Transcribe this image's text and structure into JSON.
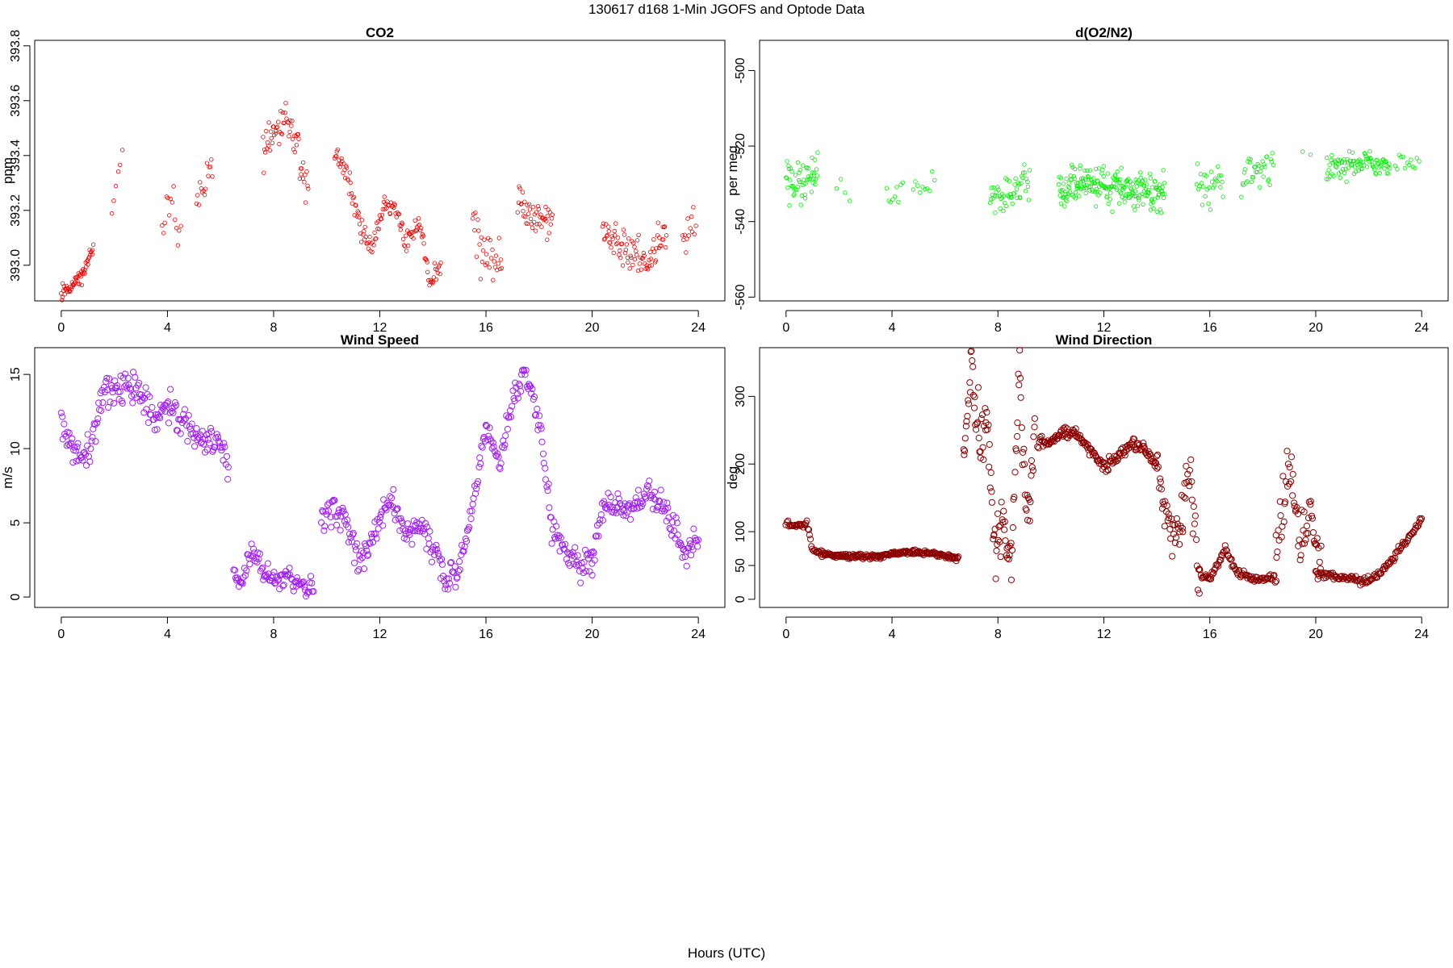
{
  "figure": {
    "title": "130617   d168   1-Min  JGOFS and Optode Data",
    "xlabel": "Hours (UTC)"
  },
  "chart_data": [
    {
      "id": "co2",
      "type": "scatter",
      "title": "CO2",
      "xlabel": "",
      "ylabel": "ppm",
      "xlim": [
        -1,
        25
      ],
      "ylim": [
        392.87,
        393.82
      ],
      "xticks": [
        0,
        4,
        8,
        12,
        16,
        20,
        24
      ],
      "yticks": [
        393.0,
        393.2,
        393.4,
        393.6,
        393.8
      ],
      "ytick_labels": [
        "393.0",
        "393.2",
        "393.4",
        "393.6",
        "393.8"
      ],
      "grid": false,
      "marker": "open-circle",
      "marker_color": "#ee0000",
      "segments": [
        {
          "x": [
            0.0,
            0.4,
            0.8,
            1.2
          ],
          "y": [
            392.9,
            392.93,
            392.96,
            393.07
          ],
          "spread": 0.025,
          "density": 48
        },
        {
          "x": [
            1.9,
            2.3
          ],
          "y": [
            393.17,
            393.42
          ],
          "spread": 0.07,
          "density": 15
        },
        {
          "x": [
            3.8,
            4.1,
            4.5
          ],
          "y": [
            393.13,
            393.28,
            393.12
          ],
          "spread": 0.08,
          "density": 20
        },
        {
          "x": [
            5.1,
            5.4,
            5.7
          ],
          "y": [
            393.22,
            393.3,
            393.38
          ],
          "spread": 0.06,
          "density": 25
        },
        {
          "x": [
            7.6,
            8.1,
            8.5,
            8.9,
            9.3
          ],
          "y": [
            393.42,
            393.5,
            393.55,
            393.45,
            393.26
          ],
          "spread": 0.07,
          "density": 35
        },
        {
          "x": [
            10.3,
            10.8,
            11.3,
            11.7,
            12.2,
            12.6,
            13.0,
            13.5,
            13.9,
            14.3
          ],
          "y": [
            393.42,
            393.32,
            393.12,
            393.07,
            393.22,
            393.2,
            393.08,
            393.15,
            392.94,
            393.0
          ],
          "spread": 0.04,
          "density": 35
        },
        {
          "x": [
            15.5,
            16.0,
            16.6
          ],
          "y": [
            393.15,
            393.02,
            393.0
          ],
          "spread": 0.08,
          "density": 28
        },
        {
          "x": [
            17.2,
            17.8,
            18.5
          ],
          "y": [
            393.23,
            393.18,
            393.14
          ],
          "spread": 0.06,
          "density": 35
        },
        {
          "x": [
            20.4,
            21.0,
            21.6,
            22.2,
            22.8
          ],
          "y": [
            393.12,
            393.06,
            393.04,
            393.02,
            393.12
          ],
          "spread": 0.06,
          "density": 35
        },
        {
          "x": [
            23.4,
            23.9
          ],
          "y": [
            393.08,
            393.15
          ],
          "spread": 0.06,
          "density": 25
        }
      ]
    },
    {
      "id": "o2n2",
      "type": "scatter",
      "title": "d(O2/N2)",
      "xlabel": "",
      "ylabel": "per meg",
      "xlim": [
        -1,
        25
      ],
      "ylim": [
        -561,
        -492
      ],
      "xticks": [
        0,
        4,
        8,
        12,
        16,
        20,
        24
      ],
      "yticks": [
        -560,
        -540,
        -520,
        -500
      ],
      "ytick_labels": [
        "-560",
        "-540",
        "-520",
        "-500"
      ],
      "grid": false,
      "marker": "open-circle",
      "marker_color": "#00ee00",
      "segments": [
        {
          "x": [
            0.0,
            0.5,
            1.2
          ],
          "y": [
            -529,
            -530,
            -528
          ],
          "spread": 5,
          "density": 45
        },
        {
          "x": [
            1.9,
            2.4
          ],
          "y": [
            -530,
            -532
          ],
          "spread": 4,
          "density": 8
        },
        {
          "x": [
            3.8,
            4.4
          ],
          "y": [
            -532,
            -532
          ],
          "spread": 4,
          "density": 15
        },
        {
          "x": [
            4.8,
            5.6
          ],
          "y": [
            -532,
            -530
          ],
          "spread": 4,
          "density": 12
        },
        {
          "x": [
            7.7,
            8.4,
            9.2
          ],
          "y": [
            -533,
            -532,
            -530
          ],
          "spread": 4,
          "density": 35
        },
        {
          "x": [
            10.3,
            11.2,
            12.2,
            13.2,
            14.3
          ],
          "y": [
            -532,
            -530,
            -531,
            -532,
            -533
          ],
          "spread": 4.5,
          "density": 55
        },
        {
          "x": [
            15.5,
            16.0,
            16.5
          ],
          "y": [
            -529,
            -531,
            -530
          ],
          "spread": 5,
          "density": 28
        },
        {
          "x": [
            17.2,
            17.8,
            18.4
          ],
          "y": [
            -528,
            -527,
            -526
          ],
          "spread": 5,
          "density": 30
        },
        {
          "x": [
            19.5,
            19.8
          ],
          "y": [
            -522,
            -522
          ],
          "spread": 2,
          "density": 5
        },
        {
          "x": [
            20.4,
            21.2,
            22.0,
            22.8
          ],
          "y": [
            -526,
            -525,
            -524,
            -526
          ],
          "spread": 3,
          "density": 40
        },
        {
          "x": [
            23.0,
            23.9
          ],
          "y": [
            -524,
            -523
          ],
          "spread": 3,
          "density": 15
        }
      ]
    },
    {
      "id": "windspeed",
      "type": "scatter",
      "title": "Wind Speed",
      "xlabel": "",
      "ylabel": "m/s",
      "xlim": [
        -1,
        25
      ],
      "ylim": [
        -0.7,
        16.8
      ],
      "xticks": [
        0,
        4,
        8,
        12,
        16,
        20,
        24
      ],
      "yticks": [
        0,
        5,
        10,
        15
      ],
      "ytick_labels": [
        "0",
        "5",
        "10",
        "15"
      ],
      "grid": false,
      "marker": "open-circle",
      "marker_color": "#a020f0",
      "segments": [
        {
          "x": [
            0.0,
            0.4,
            0.8,
            1.2,
            1.6,
            2.0,
            2.5,
            3.0,
            3.5,
            4.0,
            4.5,
            5.0,
            5.5,
            6.0,
            6.3
          ],
          "y": [
            11.5,
            10.0,
            9.3,
            11.0,
            14.0,
            13.5,
            14.2,
            14.0,
            12.0,
            12.8,
            11.8,
            11.0,
            10.6,
            10.5,
            8.5
          ],
          "spread": 1.0,
          "density": 30
        },
        {
          "x": [
            6.5,
            6.8,
            7.2,
            7.6,
            8.0,
            8.5,
            9.0,
            9.5
          ],
          "y": [
            2.0,
            1.0,
            3.0,
            2.0,
            1.0,
            1.3,
            0.8,
            0.6
          ],
          "spread": 0.7,
          "density": 30
        },
        {
          "x": [
            9.8,
            10.3,
            10.8,
            11.2,
            11.6,
            12.0,
            12.5,
            13.0,
            13.5,
            14.0,
            14.5,
            15.0,
            15.5,
            16.0
          ],
          "y": [
            5.0,
            6.0,
            5.0,
            2.0,
            3.5,
            5.5,
            6.5,
            4.0,
            5.0,
            3.5,
            1.0,
            2.0,
            6.0,
            11.5
          ],
          "spread": 0.9,
          "density": 30
        },
        {
          "x": [
            16.0,
            16.5,
            17.0,
            17.5,
            18.0,
            18.5,
            19.0,
            19.5,
            20.0
          ],
          "y": [
            11.5,
            9.0,
            13.0,
            15.0,
            12.0,
            4.5,
            3.0,
            2.0,
            2.5
          ],
          "spread": 1.0,
          "density": 30
        },
        {
          "x": [
            20.0,
            20.5,
            21.0,
            21.5,
            22.0,
            22.5,
            23.0,
            23.5,
            24.0
          ],
          "y": [
            2.5,
            6.5,
            6.0,
            6.0,
            7.0,
            6.5,
            5.0,
            3.0,
            4.0
          ],
          "spread": 0.9,
          "density": 30
        }
      ]
    },
    {
      "id": "winddir",
      "type": "scatter",
      "title": "Wind Direction",
      "xlabel": "",
      "ylabel": "deg",
      "xlim": [
        -1,
        25
      ],
      "ylim": [
        -12,
        372
      ],
      "xticks": [
        0,
        4,
        8,
        12,
        16,
        20,
        24
      ],
      "yticks": [
        0,
        50,
        100,
        200,
        300
      ],
      "ytick_labels": [
        "0",
        "50",
        "100",
        "200",
        "300"
      ],
      "grid": false,
      "marker": "open-circle",
      "marker_color": "#8b0000",
      "segments": [
        {
          "x": [
            0.0,
            0.4,
            0.8,
            1.0,
            1.4
          ],
          "y": [
            110,
            108,
            114,
            72,
            67
          ],
          "spread": 5,
          "density": 30
        },
        {
          "x": [
            1.4,
            2.5,
            3.5,
            4.5,
            5.5,
            6.5
          ],
          "y": [
            67,
            63,
            63,
            70,
            68,
            60
          ],
          "spread": 3,
          "density": 40
        },
        {
          "x": [
            6.7,
            7.0,
            7.3,
            7.6,
            7.9,
            8.2,
            8.5,
            8.8,
            9.1,
            9.4
          ],
          "y": [
            190,
            340,
            240,
            270,
            70,
            120,
            50,
            340,
            110,
            240
          ],
          "spread": 40,
          "density": 40
        },
        {
          "x": [
            9.5,
            10.0,
            10.5,
            11.0,
            11.5,
            12.0,
            12.5,
            13.0,
            13.5,
            14.0
          ],
          "y": [
            230,
            235,
            250,
            245,
            220,
            195,
            210,
            230,
            225,
            195
          ],
          "spread": 8,
          "density": 35
        },
        {
          "x": [
            14.0,
            14.4,
            14.8,
            15.2,
            15.6
          ],
          "y": [
            195,
            120,
            90,
            200,
            40
          ],
          "spread": 35,
          "density": 35
        },
        {
          "x": [
            15.6,
            16.0,
            16.6,
            17.0,
            17.5,
            18.0,
            18.5
          ],
          "y": [
            40,
            30,
            75,
            40,
            30,
            30,
            30
          ],
          "spread": 6,
          "density": 30
        },
        {
          "x": [
            18.5,
            19.0,
            19.4,
            19.8,
            20.2
          ],
          "y": [
            60,
            200,
            80,
            120,
            40
          ],
          "spread": 45,
          "density": 35
        },
        {
          "x": [
            20.0,
            20.5,
            21.0,
            21.5,
            22.0,
            22.5,
            23.0,
            23.5,
            24.0
          ],
          "y": [
            40,
            35,
            32,
            30,
            28,
            40,
            65,
            90,
            120
          ],
          "spread": 6,
          "density": 30
        }
      ]
    }
  ]
}
